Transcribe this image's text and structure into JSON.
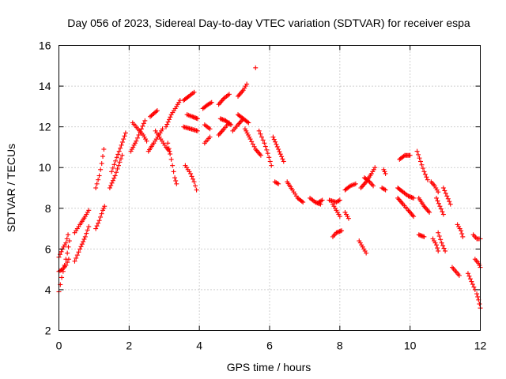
{
  "chart_data": {
    "type": "scatter",
    "title": "Day 056 of 2023, Sidereal Day-to-day VTEC variation (SDTVAR) for receiver espa",
    "xlabel": "GPS time / hours",
    "ylabel": "SDTVAR / TECUs",
    "xlim": [
      0,
      12
    ],
    "ylim": [
      2,
      16
    ],
    "xticks": [
      0,
      2,
      4,
      6,
      8,
      10,
      12
    ],
    "yticks": [
      2,
      4,
      6,
      8,
      10,
      12,
      14,
      16
    ],
    "grid": true,
    "marker": "+",
    "color": "#ff0000",
    "series": [
      {
        "name": "SDTVAR",
        "tracks": [
          [
            [
              0.0,
              3.9
            ],
            [
              0.08,
              4.6
            ],
            [
              0.16,
              5.2
            ],
            [
              0.24,
              5.8
            ],
            [
              0.3,
              6.4
            ]
          ],
          [
            [
              0.0,
              4.9
            ],
            [
              0.1,
              5.0
            ],
            [
              0.2,
              5.2
            ],
            [
              0.28,
              5.5
            ]
          ],
          [
            [
              0.0,
              5.6
            ],
            [
              0.1,
              6.0
            ],
            [
              0.2,
              6.3
            ],
            [
              0.26,
              6.7
            ]
          ],
          [
            [
              0.45,
              5.4
            ],
            [
              0.6,
              6.0
            ],
            [
              0.75,
              6.6
            ],
            [
              0.85,
              7.1
            ]
          ],
          [
            [
              0.45,
              6.8
            ],
            [
              0.6,
              7.2
            ],
            [
              0.75,
              7.6
            ],
            [
              0.85,
              7.9
            ]
          ],
          [
            [
              1.05,
              7.0
            ],
            [
              1.15,
              7.4
            ],
            [
              1.25,
              7.9
            ],
            [
              1.3,
              8.1
            ]
          ],
          [
            [
              1.05,
              9.0
            ],
            [
              1.15,
              9.6
            ],
            [
              1.22,
              10.2
            ],
            [
              1.28,
              10.9
            ]
          ],
          [
            [
              1.45,
              9.0
            ],
            [
              1.6,
              9.6
            ],
            [
              1.7,
              10.1
            ],
            [
              1.8,
              10.6
            ]
          ],
          [
            [
              1.5,
              9.8
            ],
            [
              1.65,
              10.5
            ],
            [
              1.78,
              11.1
            ],
            [
              1.9,
              11.7
            ]
          ],
          [
            [
              2.05,
              10.8
            ],
            [
              2.2,
              11.3
            ],
            [
              2.35,
              11.9
            ],
            [
              2.45,
              12.3
            ]
          ],
          [
            [
              2.1,
              12.2
            ],
            [
              2.25,
              11.9
            ],
            [
              2.4,
              11.6
            ],
            [
              2.5,
              11.3
            ]
          ],
          [
            [
              2.55,
              10.8
            ],
            [
              2.7,
              11.2
            ],
            [
              2.85,
              11.6
            ],
            [
              2.95,
              11.9
            ]
          ],
          [
            [
              2.6,
              12.5
            ],
            [
              2.8,
              12.8
            ]
          ],
          [
            [
              2.75,
              11.8
            ],
            [
              2.9,
              11.4
            ],
            [
              3.05,
              11.0
            ],
            [
              3.15,
              10.8
            ]
          ],
          [
            [
              3.05,
              12.0
            ],
            [
              3.2,
              12.6
            ],
            [
              3.35,
              13.0
            ],
            [
              3.45,
              13.3
            ]
          ],
          [
            [
              3.1,
              11.2
            ],
            [
              3.2,
              10.4
            ],
            [
              3.3,
              9.5
            ],
            [
              3.35,
              9.2
            ]
          ],
          [
            [
              3.6,
              10.1
            ],
            [
              3.75,
              9.7
            ],
            [
              3.85,
              9.3
            ],
            [
              3.92,
              8.9
            ]
          ],
          [
            [
              3.65,
              12.6
            ],
            [
              3.8,
              12.5
            ],
            [
              3.95,
              12.4
            ]
          ],
          [
            [
              3.55,
              13.3
            ],
            [
              3.7,
              13.5
            ],
            [
              3.85,
              13.7
            ]
          ],
          [
            [
              3.55,
              12.0
            ],
            [
              3.75,
              11.9
            ],
            [
              3.95,
              11.8
            ]
          ],
          [
            [
              4.15,
              12.1
            ],
            [
              4.3,
              11.9
            ]
          ],
          [
            [
              4.15,
              11.2
            ],
            [
              4.3,
              11.5
            ]
          ],
          [
            [
              4.1,
              12.9
            ],
            [
              4.25,
              13.1
            ],
            [
              4.35,
              13.2
            ]
          ],
          [
            [
              4.55,
              13.1
            ],
            [
              4.7,
              13.4
            ],
            [
              4.85,
              13.6
            ]
          ],
          [
            [
              4.55,
              11.6
            ],
            [
              4.7,
              11.9
            ],
            [
              4.85,
              12.2
            ]
          ],
          [
            [
              4.6,
              12.4
            ],
            [
              4.75,
              12.3
            ],
            [
              4.9,
              12.1
            ]
          ],
          [
            [
              4.95,
              11.8
            ],
            [
              5.1,
              12.1
            ],
            [
              5.25,
              12.4
            ]
          ],
          [
            [
              5.1,
              12.6
            ],
            [
              5.25,
              12.4
            ],
            [
              5.4,
              12.2
            ]
          ],
          [
            [
              5.1,
              13.5
            ],
            [
              5.25,
              13.8
            ],
            [
              5.35,
              14.1
            ]
          ],
          [
            [
              5.3,
              11.9
            ],
            [
              5.45,
              11.4
            ],
            [
              5.6,
              10.9
            ],
            [
              5.75,
              10.6
            ]
          ],
          [
            [
              5.6,
              14.9
            ]
          ],
          [
            [
              5.7,
              11.8
            ],
            [
              5.85,
              11.2
            ],
            [
              5.95,
              10.7
            ],
            [
              6.05,
              10.1
            ]
          ],
          [
            [
              6.1,
              11.5
            ],
            [
              6.25,
              10.9
            ],
            [
              6.4,
              10.3
            ]
          ],
          [
            [
              6.15,
              9.3
            ],
            [
              6.25,
              9.2
            ]
          ],
          [
            [
              6.5,
              9.3
            ],
            [
              6.65,
              8.9
            ],
            [
              6.8,
              8.5
            ],
            [
              6.95,
              8.3
            ]
          ],
          [
            [
              7.15,
              8.5
            ],
            [
              7.3,
              8.3
            ],
            [
              7.45,
              8.2
            ]
          ],
          [
            [
              7.4,
              8.3
            ],
            [
              7.5,
              8.4
            ]
          ],
          [
            [
              7.7,
              8.4
            ],
            [
              7.9,
              8.3
            ],
            [
              8.0,
              8.4
            ]
          ],
          [
            [
              7.8,
              8.2
            ],
            [
              7.9,
              7.9
            ],
            [
              8.0,
              7.6
            ]
          ],
          [
            [
              7.8,
              6.6
            ],
            [
              7.9,
              6.8
            ],
            [
              8.05,
              6.9
            ]
          ],
          [
            [
              8.15,
              7.8
            ],
            [
              8.25,
              7.5
            ]
          ],
          [
            [
              8.15,
              8.9
            ],
            [
              8.3,
              9.1
            ],
            [
              8.45,
              9.2
            ]
          ],
          [
            [
              8.55,
              6.4
            ],
            [
              8.65,
              6.1
            ],
            [
              8.75,
              5.8
            ]
          ],
          [
            [
              8.6,
              9.0
            ],
            [
              8.75,
              9.3
            ],
            [
              8.9,
              9.7
            ],
            [
              9.0,
              10.0
            ]
          ],
          [
            [
              8.7,
              9.5
            ],
            [
              8.85,
              9.3
            ],
            [
              8.95,
              9.1
            ]
          ],
          [
            [
              9.25,
              9.9
            ],
            [
              9.3,
              9.7
            ]
          ],
          [
            [
              9.2,
              9.0
            ],
            [
              9.3,
              8.9
            ]
          ],
          [
            [
              9.65,
              8.5
            ],
            [
              9.8,
              8.2
            ],
            [
              9.95,
              7.9
            ],
            [
              10.1,
              7.6
            ]
          ],
          [
            [
              9.65,
              9.0
            ],
            [
              9.8,
              8.8
            ],
            [
              9.95,
              8.6
            ],
            [
              10.1,
              8.5
            ]
          ],
          [
            [
              9.7,
              10.4
            ],
            [
              9.85,
              10.6
            ],
            [
              10.0,
              10.6
            ]
          ],
          [
            [
              10.2,
              10.8
            ],
            [
              10.3,
              10.3
            ],
            [
              10.4,
              9.8
            ],
            [
              10.5,
              9.4
            ]
          ],
          [
            [
              10.25,
              8.5
            ],
            [
              10.4,
              8.1
            ],
            [
              10.55,
              7.8
            ]
          ],
          [
            [
              10.25,
              6.7
            ],
            [
              10.4,
              6.6
            ]
          ],
          [
            [
              10.6,
              9.3
            ],
            [
              10.7,
              9.1
            ],
            [
              10.8,
              8.8
            ]
          ],
          [
            [
              10.65,
              6.5
            ],
            [
              10.75,
              6.2
            ],
            [
              10.8,
              5.9
            ]
          ],
          [
            [
              10.75,
              8.5
            ],
            [
              10.85,
              8.1
            ],
            [
              10.95,
              7.7
            ]
          ],
          [
            [
              10.8,
              6.8
            ],
            [
              10.9,
              6.3
            ],
            [
              11.0,
              5.9
            ]
          ],
          [
            [
              10.95,
              9.0
            ],
            [
              11.05,
              8.6
            ],
            [
              11.15,
              8.2
            ]
          ],
          [
            [
              11.2,
              5.1
            ],
            [
              11.3,
              4.9
            ],
            [
              11.4,
              4.7
            ]
          ],
          [
            [
              11.35,
              7.2
            ],
            [
              11.45,
              6.9
            ],
            [
              11.5,
              6.6
            ]
          ],
          [
            [
              11.65,
              4.8
            ],
            [
              11.75,
              4.4
            ],
            [
              11.85,
              4.0
            ]
          ],
          [
            [
              11.8,
              6.7
            ],
            [
              11.9,
              6.5
            ],
            [
              12.0,
              6.5
            ]
          ],
          [
            [
              11.85,
              5.5
            ],
            [
              11.95,
              5.3
            ],
            [
              12.0,
              5.1
            ]
          ],
          [
            [
              11.9,
              3.8
            ],
            [
              11.95,
              3.5
            ],
            [
              12.0,
              3.1
            ]
          ]
        ]
      }
    ]
  }
}
